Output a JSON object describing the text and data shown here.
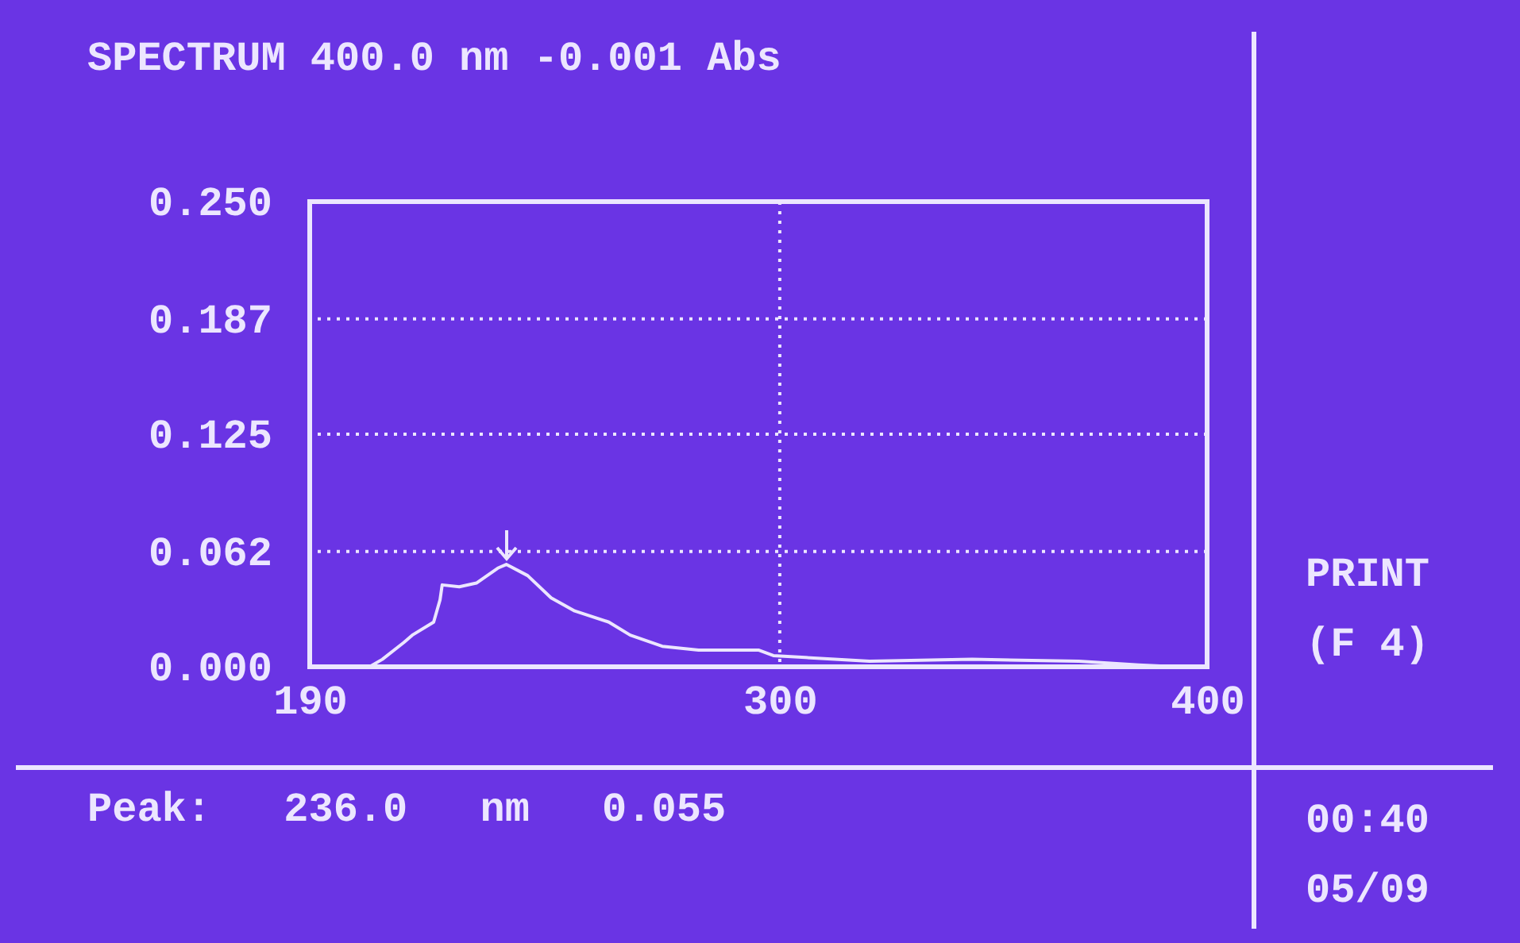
{
  "chart_data": {
    "type": "line",
    "title": "SPECTRUM 400.0 nm -0.001 Abs",
    "x": [
      190,
      202,
      204,
      207,
      212,
      214,
      219,
      220.5,
      221,
      225,
      229,
      234,
      236,
      241,
      246.5,
      252,
      260,
      265,
      272.5,
      281,
      295,
      298.5,
      306,
      321,
      345,
      370,
      384,
      393,
      400
    ],
    "series": [
      {
        "color": "#ece6ff",
        "values": [
          0,
          0,
          0,
          0.004,
          0.013,
          0.017,
          0.024,
          0.036,
          0.044,
          0.043,
          0.045,
          0.053,
          0.055,
          0.049,
          0.037,
          0.03,
          0.024,
          0.017,
          0.011,
          0.009,
          0.009,
          0.006,
          0.005,
          0.003,
          0.004,
          0.003,
          0.001,
          0,
          0
        ]
      }
    ],
    "xlim": [
      190,
      400
    ],
    "xticks": [
      190,
      300,
      400
    ],
    "ylim": [
      0,
      0.25
    ],
    "yticks": [
      {
        "value": 0,
        "label": "0.000"
      },
      0.062,
      0.125,
      0.187,
      {
        "value": 0.25,
        "label": "0.250"
      }
    ],
    "grid": true,
    "line_style": "solid",
    "marker": "none",
    "annotations": [
      "Peak: 236.0 nm 0.055",
      "PRINT (F 4)",
      "00:40 05/09"
    ]
  }
}
